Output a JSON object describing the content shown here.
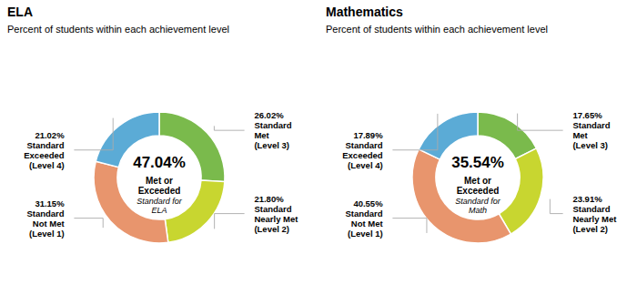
{
  "chart_data": [
    {
      "type": "donut",
      "title": "ELA",
      "subtitle": "Percent of students within each achievement level",
      "categories": [
        "Standard\nMet\n(Level 3)",
        "Standard\nNearly Met\n(Level 2)",
        "Standard\nNot Met\n(Level 1)",
        "Standard\nExceeded\n(Level 4)"
      ],
      "values": [
        26.02,
        21.8,
        31.15,
        21.02
      ],
      "value_labels": [
        "26.02%",
        "21.80%",
        "31.15%",
        "21.02%"
      ],
      "colors": [
        "#7aba4c",
        "#c8d630",
        "#e8956d",
        "#5babd6"
      ],
      "data_labels": true,
      "annotations": [
        "47.04%",
        "Met or\nExceeded",
        "Standard for\nELA"
      ]
    },
    {
      "type": "donut",
      "title": "Mathematics",
      "subtitle": "Percent of students within each achievement level",
      "categories": [
        "Standard\nMet\n(Level 3)",
        "Standard\nNearly Met\n(Level 2)",
        "Standard\nNot Met\n(Level 1)",
        "Standard\nExceeded\n(Level 4)"
      ],
      "values": [
        17.65,
        23.91,
        40.55,
        17.89
      ],
      "value_labels": [
        "17.65%",
        "23.91%",
        "40.55%",
        "17.89%"
      ],
      "colors": [
        "#7aba4c",
        "#c8d630",
        "#e8956d",
        "#5babd6"
      ],
      "data_labels": true,
      "annotations": [
        "35.54%",
        "Met or\nExceeded",
        "Standard for\nMath"
      ]
    }
  ]
}
